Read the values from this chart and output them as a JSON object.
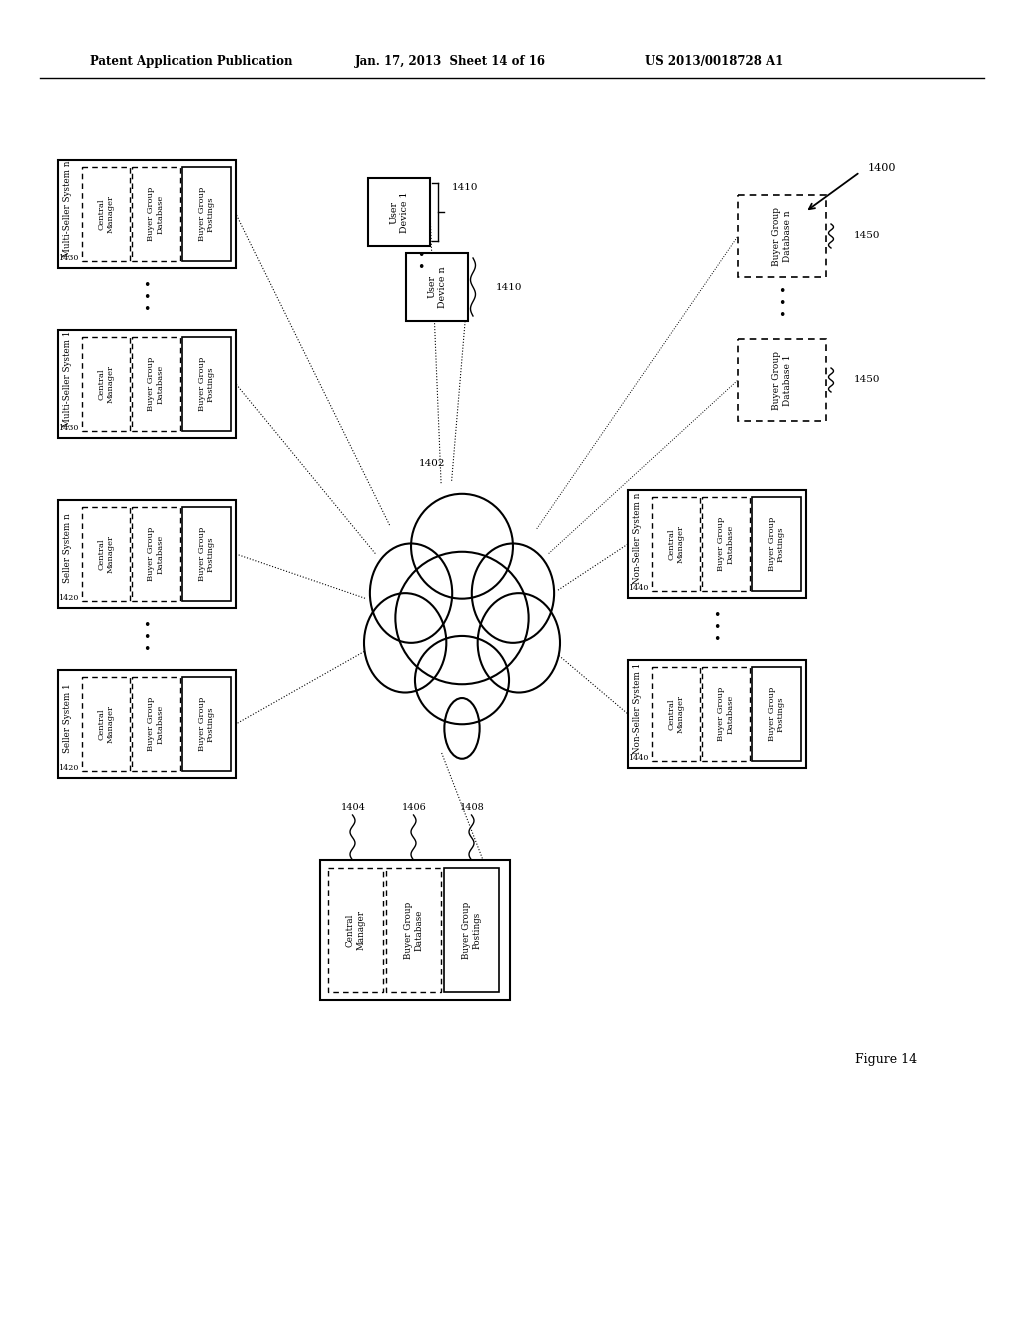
{
  "header_left": "Patent Application Publication",
  "header_mid": "Jan. 17, 2013  Sheet 14 of 16",
  "header_right": "US 2013/0018728 A1",
  "figure_label": "Figure 14",
  "diagram_label": "1400",
  "cloud_label": "1402",
  "central_label": "1404",
  "bg_db_label": "1406",
  "bg_postings_label": "1408",
  "user_device_label": "1410",
  "multi_seller_label": "1430",
  "seller_label": "1420",
  "non_seller_label": "1440",
  "buyer_group_db_label": "1450",
  "background_color": "#ffffff",
  "line_color": "#000000"
}
